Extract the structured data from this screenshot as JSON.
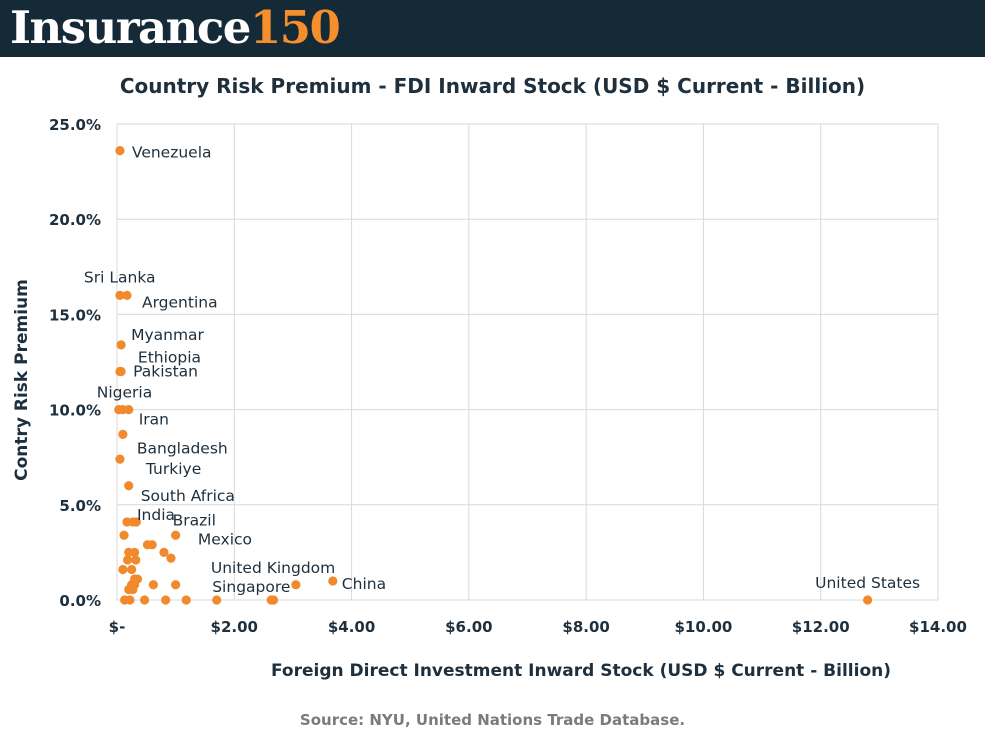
{
  "brand": {
    "word": "Insurance",
    "number": "150"
  },
  "chart_data": {
    "type": "scatter",
    "title": "Country Risk Premium - FDI Inward Stock (USD $ Current - Billion)",
    "xlabel": "Foreign Direct Investment Inward Stock (USD $ Current - Billion)",
    "ylabel": "Contry Risk Premium",
    "xlim": [
      0,
      14
    ],
    "ylim": [
      0,
      25
    ],
    "x_ticks": [
      0,
      2,
      4,
      6,
      8,
      10,
      12,
      14
    ],
    "x_tick_labels": [
      "$-",
      "$2.00",
      "$4.00",
      "$6.00",
      "$8.00",
      "$10.00",
      "$12.00",
      "$14.00"
    ],
    "y_ticks": [
      0,
      5,
      10,
      15,
      20,
      25
    ],
    "y_tick_labels": [
      "0.0%",
      "5.0%",
      "10.0%",
      "15.0%",
      "20.0%",
      "25.0%"
    ],
    "grid": true,
    "marker_color": "#f08a2c",
    "points": [
      {
        "x": 0.05,
        "y": 23.6,
        "label": "Venezuela"
      },
      {
        "x": 0.05,
        "y": 16.0,
        "label": "Sri Lanka"
      },
      {
        "x": 0.17,
        "y": 16.0,
        "label": "Argentina"
      },
      {
        "x": 0.07,
        "y": 13.4,
        "label": "Myanmar"
      },
      {
        "x": 0.05,
        "y": 12.0,
        "label": "Ethiopia"
      },
      {
        "x": 0.07,
        "y": 12.0,
        "label": "Pakistan"
      },
      {
        "x": 0.03,
        "y": 10.0,
        "label": "Nigeria"
      },
      {
        "x": 0.1,
        "y": 10.0
      },
      {
        "x": 0.2,
        "y": 10.0,
        "label": "Iran"
      },
      {
        "x": 0.1,
        "y": 8.7,
        "label": "Bangladesh"
      },
      {
        "x": 0.05,
        "y": 7.4,
        "label": "Turkiye"
      },
      {
        "x": 0.2,
        "y": 6.0,
        "label": "South Africa"
      },
      {
        "x": 0.17,
        "y": 4.1,
        "label": "India"
      },
      {
        "x": 0.27,
        "y": 4.1
      },
      {
        "x": 0.33,
        "y": 4.1
      },
      {
        "x": 1.0,
        "y": 3.4,
        "label": "Brazil"
      },
      {
        "x": 0.12,
        "y": 3.4
      },
      {
        "x": 0.52,
        "y": 2.9
      },
      {
        "x": 0.6,
        "y": 2.9
      },
      {
        "x": 0.2,
        "y": 2.5
      },
      {
        "x": 0.3,
        "y": 2.5
      },
      {
        "x": 0.8,
        "y": 2.5,
        "label": "Mexico"
      },
      {
        "x": 0.18,
        "y": 2.1
      },
      {
        "x": 0.32,
        "y": 2.1
      },
      {
        "x": 0.92,
        "y": 2.2
      },
      {
        "x": 0.1,
        "y": 1.6
      },
      {
        "x": 0.25,
        "y": 1.6
      },
      {
        "x": 0.3,
        "y": 1.1
      },
      {
        "x": 0.35,
        "y": 1.1
      },
      {
        "x": 0.25,
        "y": 0.8
      },
      {
        "x": 0.3,
        "y": 0.8
      },
      {
        "x": 0.62,
        "y": 0.8
      },
      {
        "x": 1.0,
        "y": 0.8
      },
      {
        "x": 3.05,
        "y": 0.8,
        "label": "United Kingdom"
      },
      {
        "x": 3.68,
        "y": 1.0,
        "label": "China"
      },
      {
        "x": 0.2,
        "y": 0.55
      },
      {
        "x": 0.27,
        "y": 0.55
      },
      {
        "x": 0.13,
        "y": 0.0
      },
      {
        "x": 0.22,
        "y": 0.0
      },
      {
        "x": 0.47,
        "y": 0.0
      },
      {
        "x": 0.83,
        "y": 0.0
      },
      {
        "x": 1.18,
        "y": 0.0
      },
      {
        "x": 1.7,
        "y": 0.0
      },
      {
        "x": 2.63,
        "y": 0.0,
        "label": "Singapore"
      },
      {
        "x": 2.67,
        "y": 0.0
      },
      {
        "x": 12.8,
        "y": 0.0,
        "label": "United States"
      }
    ]
  },
  "source": "Source: NYU, United Nations Trade Database."
}
